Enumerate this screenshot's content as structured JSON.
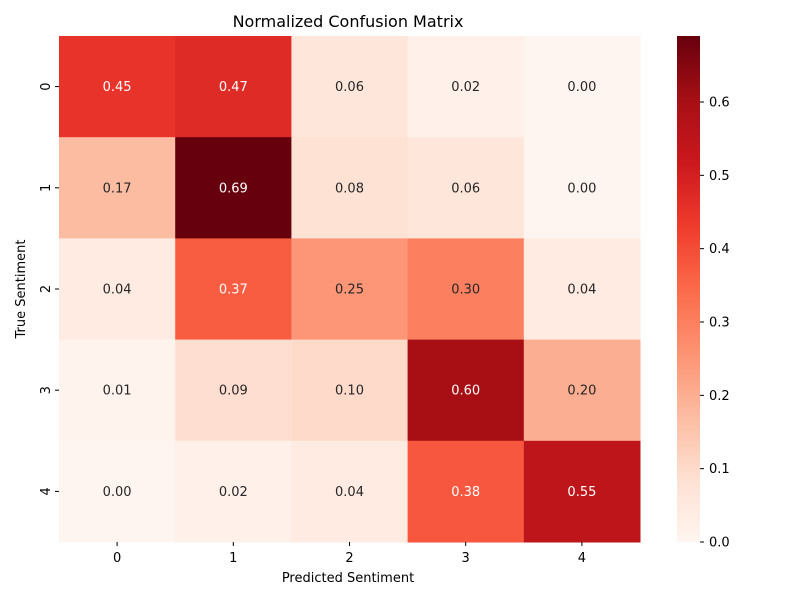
{
  "chart_data": {
    "type": "heatmap",
    "title": "Normalized Confusion Matrix",
    "xlabel": "Predicted Sentiment",
    "ylabel": "True Sentiment",
    "x_categories": [
      "0",
      "1",
      "2",
      "3",
      "4"
    ],
    "y_categories": [
      "0",
      "1",
      "2",
      "3",
      "4"
    ],
    "values": [
      [
        0.45,
        0.47,
        0.06,
        0.02,
        0.0
      ],
      [
        0.17,
        0.69,
        0.08,
        0.06,
        0.0
      ],
      [
        0.04,
        0.37,
        0.25,
        0.3,
        0.04
      ],
      [
        0.01,
        0.09,
        0.1,
        0.6,
        0.2
      ],
      [
        0.0,
        0.02,
        0.04,
        0.38,
        0.55
      ]
    ],
    "value_format": "0.00",
    "colormap": "Reds",
    "colorbar": {
      "range": [
        0.0,
        0.69
      ],
      "ticks": [
        "0.0",
        "0.1",
        "0.2",
        "0.3",
        "0.4",
        "0.5",
        "0.6"
      ]
    },
    "grid": false,
    "legend": "none"
  }
}
